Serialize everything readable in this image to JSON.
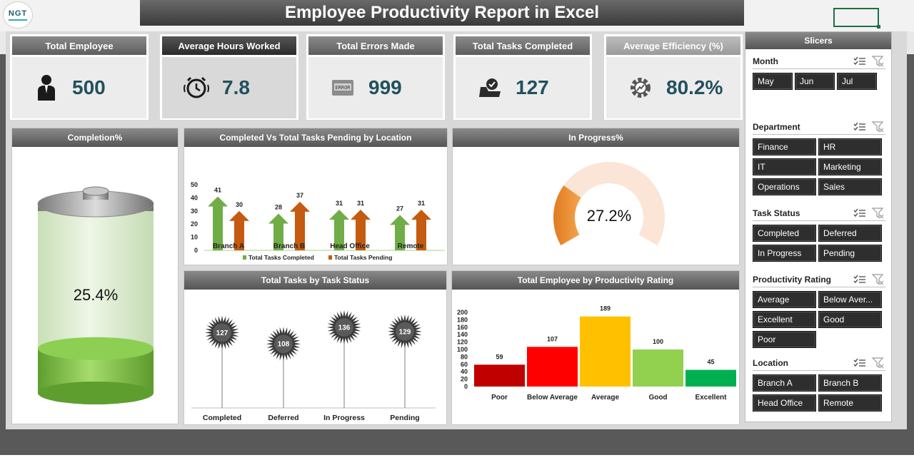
{
  "title": "Employee Productivity Report in Excel",
  "logo": {
    "text": "NGT"
  },
  "kpis": [
    {
      "label": "Total Employee",
      "value": "500",
      "icon": "employee-icon"
    },
    {
      "label": "Average Hours Worked",
      "value": "7.8",
      "icon": "alarm-clock-icon"
    },
    {
      "label": "Total Errors Made",
      "value": "999",
      "icon": "error-icon"
    },
    {
      "label": "Total Tasks Completed",
      "value": "127",
      "icon": "tasks-completed-icon"
    },
    {
      "label": "Average Efficiency (%)",
      "value": "80.2%",
      "icon": "efficiency-gear-icon"
    }
  ],
  "completion": {
    "title": "Completion%",
    "value": "25.4%",
    "fraction": 0.254
  },
  "inprogress": {
    "title": "In Progress%",
    "value": "27.2%",
    "fraction": 0.272
  },
  "colors": {
    "green": "#70ad47",
    "orange": "#c55a11",
    "title_text": "#ffffff"
  },
  "slicers": {
    "title": "Slicers",
    "groups": [
      {
        "title": "Month",
        "items": [
          "May",
          "Jun",
          "Jul"
        ]
      },
      {
        "title": "Department",
        "items": [
          "Finance",
          "HR",
          "IT",
          "Marketing",
          "Operations",
          "Sales"
        ]
      },
      {
        "title": "Task Status",
        "items": [
          "Completed",
          "Deferred",
          "In Progress",
          "Pending"
        ]
      },
      {
        "title": "Productivity Rating",
        "items": [
          "Average",
          "Below Aver...",
          "Excellent",
          "Good",
          "Poor"
        ]
      },
      {
        "title": "Location",
        "items": [
          "Branch A",
          "Branch B",
          "Head Office",
          "Remote"
        ]
      }
    ]
  },
  "chart_data": [
    {
      "type": "bar",
      "title": "Completed Vs Total Tasks Pending by Location",
      "categories": [
        "Branch A",
        "Branch B",
        "Head Office",
        "Remote"
      ],
      "series": [
        {
          "name": "Total Tasks Completed",
          "values": [
            41,
            28,
            31,
            27
          ],
          "color": "#70ad47"
        },
        {
          "name": "Total Tasks Pending",
          "values": [
            30,
            37,
            31,
            31
          ],
          "color": "#c55a11"
        }
      ],
      "yticks": [
        "0",
        "10",
        "20",
        "30",
        "40",
        "50"
      ],
      "ylim": [
        0,
        50
      ]
    },
    {
      "type": "bar",
      "title": "Total Tasks by Task Status",
      "categories": [
        "Completed",
        "Deferred",
        "In Progress",
        "Pending"
      ],
      "values": [
        127,
        108,
        136,
        129
      ],
      "ylim": [
        0,
        160
      ]
    },
    {
      "type": "bar",
      "title": "Total Employee by Productivity Rating",
      "categories": [
        "Poor",
        "Below Average",
        "Average",
        "Good",
        "Excellent"
      ],
      "values": [
        59,
        107,
        189,
        100,
        45
      ],
      "colors": [
        "#c00000",
        "#ff0000",
        "#ffc000",
        "#92d050",
        "#00b050"
      ],
      "yticks": [
        "0",
        "20",
        "40",
        "60",
        "80",
        "100",
        "120",
        "140",
        "160",
        "180",
        "200"
      ],
      "ylim": [
        0,
        200
      ]
    }
  ]
}
